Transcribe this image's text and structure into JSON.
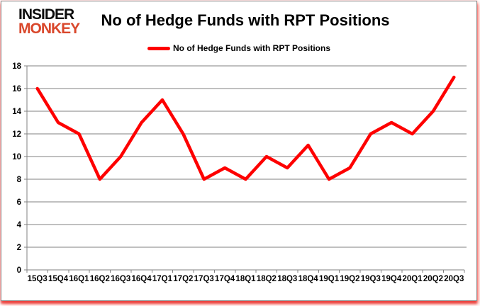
{
  "logo": {
    "line1": "INSIDER",
    "line2": "MONKEY"
  },
  "header": {
    "title": "No of Hedge Funds with RPT Positions"
  },
  "legend": {
    "label": "No of Hedge Funds with RPT Positions"
  },
  "colors": {
    "series_line": "#fe0000",
    "logo_black": "#0b0b0b",
    "logo_accent": "#d9472b",
    "gridline": "#808080",
    "axis": "#808080",
    "label_text": "#000000",
    "frame_border": "#8a8a8a",
    "frame_shadow": "#e41e19"
  },
  "chart_data": {
    "type": "line",
    "title": "No of Hedge Funds with RPT Positions",
    "x": [
      "15Q3",
      "15Q4",
      "16Q1",
      "16Q2",
      "16Q3",
      "16Q4",
      "17Q1",
      "17Q2",
      "17Q3",
      "17Q4",
      "18Q1",
      "18Q2",
      "18Q3",
      "18Q4",
      "19Q1",
      "19Q2",
      "19Q3",
      "19Q4",
      "20Q1",
      "20Q2",
      "20Q3"
    ],
    "series": [
      {
        "name": "No of Hedge Funds with RPT Positions",
        "color": "#fe0000",
        "values": [
          16,
          13,
          12,
          8,
          10,
          13,
          15,
          12,
          8,
          9,
          8,
          10,
          9,
          11,
          8,
          9,
          12,
          13,
          12,
          14,
          17
        ]
      }
    ],
    "ylim": [
      0,
      18
    ],
    "yticks": [
      0,
      2,
      4,
      6,
      8,
      10,
      12,
      14,
      16,
      18
    ],
    "grid": "horizontal",
    "legend_position": "top-center",
    "xlabel": "",
    "ylabel": ""
  }
}
